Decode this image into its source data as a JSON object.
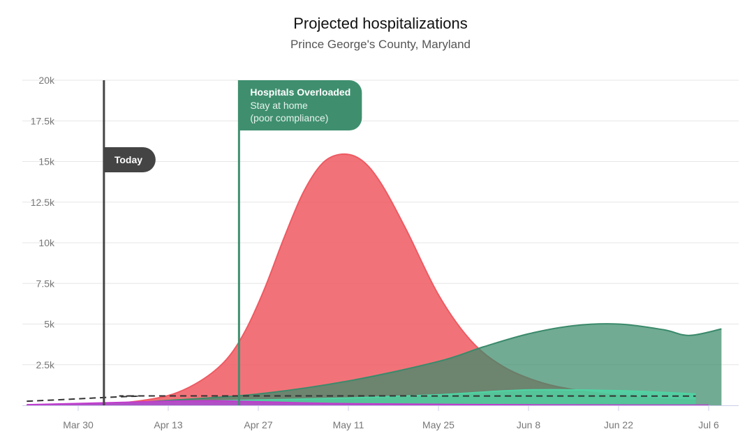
{
  "chart_data": {
    "type": "area",
    "title": "Projected hospitalizations",
    "subtitle": "Prince George's County, Maryland",
    "xlabel": "",
    "ylabel": "",
    "x_ticks": [
      {
        "date": "2020-03-30",
        "label": "Mar 30"
      },
      {
        "date": "2020-04-13",
        "label": "Apr 13"
      },
      {
        "date": "2020-04-27",
        "label": "Apr 27"
      },
      {
        "date": "2020-05-11",
        "label": "May 11"
      },
      {
        "date": "2020-05-25",
        "label": "May 25"
      },
      {
        "date": "2020-06-08",
        "label": "Jun 8"
      },
      {
        "date": "2020-06-22",
        "label": "Jun 22"
      },
      {
        "date": "2020-07-06",
        "label": "Jul 6"
      }
    ],
    "y_ticks": [
      {
        "value": 2500,
        "label": "2.5k"
      },
      {
        "value": 5000,
        "label": "5k"
      },
      {
        "value": 7500,
        "label": "7.5k"
      },
      {
        "value": 10000,
        "label": "10k"
      },
      {
        "value": 12500,
        "label": "12.5k"
      },
      {
        "value": 15000,
        "label": "15k"
      },
      {
        "value": 17500,
        "label": "17.5k"
      },
      {
        "value": 20000,
        "label": "20k"
      }
    ],
    "ylim": [
      0,
      20000
    ],
    "xlim": [
      "2020-03-22",
      "2020-07-08"
    ],
    "grid": true,
    "markers": [
      {
        "date": "2020-04-03",
        "label": "Today",
        "color": "#444444"
      },
      {
        "date": "2020-04-24",
        "label": "Hospitals Overloaded",
        "sublabel1": "Stay at home",
        "sublabel2": "(poor compliance)",
        "color": "#3f8f6f"
      }
    ],
    "series": [
      {
        "color": "#ee5a62",
        "fill_opacity": 0.85,
        "points": [
          [
            "2020-03-22",
            0
          ],
          [
            "2020-04-01",
            40
          ],
          [
            "2020-04-06",
            150
          ],
          [
            "2020-04-13",
            600
          ],
          [
            "2020-04-18",
            1500
          ],
          [
            "2020-04-22",
            2800
          ],
          [
            "2020-04-25",
            4600
          ],
          [
            "2020-04-28",
            7200
          ],
          [
            "2020-05-01",
            10300
          ],
          [
            "2020-05-04",
            13100
          ],
          [
            "2020-05-07",
            14900
          ],
          [
            "2020-05-10",
            15450
          ],
          [
            "2020-05-13",
            15100
          ],
          [
            "2020-05-16",
            13700
          ],
          [
            "2020-05-20",
            10800
          ],
          [
            "2020-05-25",
            6800
          ],
          [
            "2020-05-30",
            4000
          ],
          [
            "2020-06-04",
            2400
          ],
          [
            "2020-06-10",
            1400
          ],
          [
            "2020-06-16",
            900
          ],
          [
            "2020-06-22",
            600
          ],
          [
            "2020-06-28",
            400
          ],
          [
            "2020-07-04",
            300
          ]
        ]
      },
      {
        "color": "#3a8a6b",
        "fill_opacity": 0.72,
        "points": [
          [
            "2020-03-22",
            0
          ],
          [
            "2020-04-06",
            150
          ],
          [
            "2020-04-13",
            300
          ],
          [
            "2020-04-27",
            700
          ],
          [
            "2020-05-11",
            1500
          ],
          [
            "2020-05-25",
            2700
          ],
          [
            "2020-06-01",
            3600
          ],
          [
            "2020-06-08",
            4400
          ],
          [
            "2020-06-15",
            4900
          ],
          [
            "2020-06-22",
            5000
          ],
          [
            "2020-06-29",
            4650
          ],
          [
            "2020-07-03",
            4300
          ],
          [
            "2020-07-08",
            4700
          ]
        ]
      },
      {
        "color": "#4fd4a4",
        "fill_opacity": 0.8,
        "points": [
          [
            "2020-03-22",
            0
          ],
          [
            "2020-04-06",
            150
          ],
          [
            "2020-04-13",
            220
          ],
          [
            "2020-04-27",
            330
          ],
          [
            "2020-05-11",
            450
          ],
          [
            "2020-05-25",
            650
          ],
          [
            "2020-06-08",
            950
          ],
          [
            "2020-06-22",
            900
          ],
          [
            "2020-07-04",
            700
          ]
        ]
      },
      {
        "color": "#c03ccd",
        "fill_opacity": 0.85,
        "points": [
          [
            "2020-03-22",
            40
          ],
          [
            "2020-04-06",
            180
          ],
          [
            "2020-04-13",
            250
          ],
          [
            "2020-04-20",
            280
          ],
          [
            "2020-04-27",
            220
          ],
          [
            "2020-05-11",
            100
          ],
          [
            "2020-06-08",
            30
          ],
          [
            "2020-07-06",
            10
          ]
        ]
      }
    ],
    "capacity_line": {
      "style": "dashed",
      "color": "#333333",
      "points": [
        [
          "2020-03-22",
          250
        ],
        [
          "2020-03-29",
          380
        ],
        [
          "2020-04-03",
          480
        ],
        [
          "2020-04-08",
          560
        ],
        [
          "2020-04-13",
          580
        ],
        [
          "2020-07-04",
          570
        ]
      ]
    }
  }
}
